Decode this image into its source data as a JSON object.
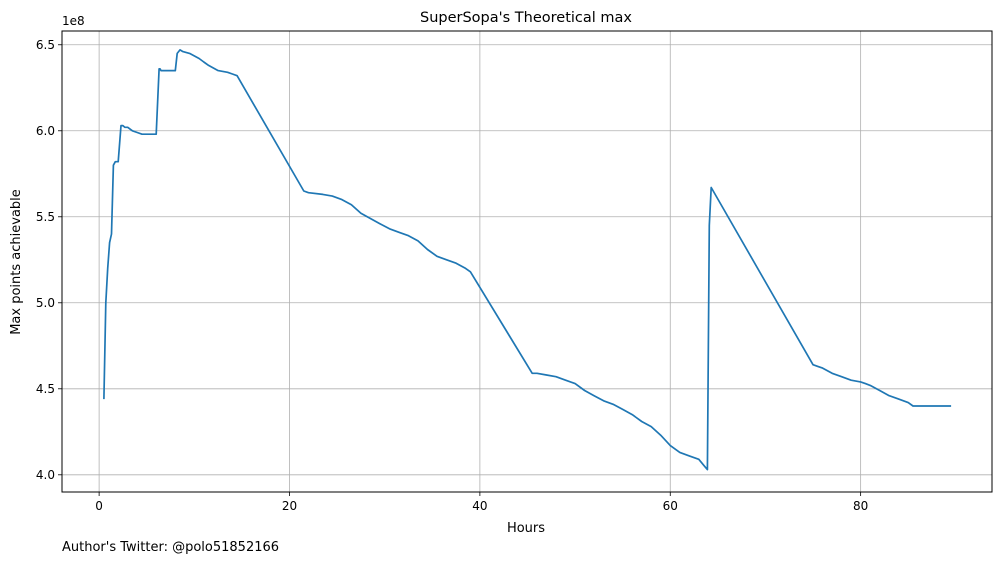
{
  "chart_data": {
    "type": "line",
    "title": "SuperSopa's Theoretical max",
    "xlabel": "Hours",
    "ylabel": "Max points achievable",
    "y_multiplier_label": "1e8",
    "y_multiplier": 100000000,
    "xlim": [
      -3.9,
      93.8
    ],
    "ylim": [
      3.9,
      6.58
    ],
    "x_ticks": [
      0,
      20,
      40,
      60,
      80
    ],
    "x_tick_labels": [
      "0",
      "20",
      "40",
      "60",
      "80"
    ],
    "y_ticks": [
      4.0,
      4.5,
      5.0,
      5.5,
      6.0,
      6.5
    ],
    "y_tick_labels": [
      "4.0",
      "4.5",
      "5.0",
      "5.5",
      "6.0",
      "6.5"
    ],
    "grid": true,
    "series": [
      {
        "color": "#1f77b4",
        "x": [
          0.5,
          0.7,
          0.9,
          1.1,
          1.3,
          1.5,
          1.7,
          2.0,
          2.3,
          2.5,
          2.7,
          3.0,
          3.5,
          4.0,
          4.5,
          5.0,
          5.5,
          6.0,
          6.3,
          6.4,
          6.5,
          7.0,
          8.0,
          8.2,
          8.5,
          8.8,
          9.5,
          10.5,
          11.0,
          11.5,
          12.5,
          13.5,
          14.0,
          14.5,
          21.5,
          22.0,
          23.5,
          24.5,
          25.5,
          26.5,
          27.5,
          28.5,
          29.5,
          30.5,
          31.5,
          32.5,
          33.5,
          34.5,
          35.5,
          36.5,
          37.5,
          38.5,
          39.0,
          45.5,
          46.0,
          47.0,
          48.0,
          49.0,
          50.0,
          51.0,
          52.0,
          53.0,
          54.0,
          55.0,
          56.0,
          57.0,
          58.0,
          59.0,
          60.0,
          61.0,
          62.0,
          63.0,
          63.6,
          63.9,
          64.1,
          64.3,
          75.0,
          75.5,
          76.0,
          77.0,
          78.0,
          79.0,
          80.0,
          80.5,
          81.0,
          82.0,
          83.0,
          84.0,
          85.0,
          85.5,
          86.0,
          87.0,
          88.0,
          89.0,
          89.5
        ],
        "y": [
          4.44,
          5.0,
          5.2,
          5.35,
          5.4,
          5.8,
          5.82,
          5.82,
          6.03,
          6.03,
          6.02,
          6.02,
          6.0,
          5.99,
          5.98,
          5.98,
          5.98,
          5.98,
          6.36,
          6.36,
          6.35,
          6.35,
          6.35,
          6.45,
          6.47,
          6.46,
          6.45,
          6.42,
          6.4,
          6.38,
          6.35,
          6.34,
          6.33,
          6.32,
          5.65,
          5.64,
          5.63,
          5.62,
          5.6,
          5.57,
          5.52,
          5.49,
          5.46,
          5.43,
          5.41,
          5.39,
          5.36,
          5.31,
          5.27,
          5.25,
          5.23,
          5.2,
          5.18,
          4.59,
          4.59,
          4.58,
          4.57,
          4.55,
          4.53,
          4.49,
          4.46,
          4.43,
          4.41,
          4.38,
          4.35,
          4.31,
          4.28,
          4.23,
          4.17,
          4.13,
          4.11,
          4.09,
          4.05,
          4.03,
          5.45,
          5.67,
          4.64,
          4.63,
          4.62,
          4.59,
          4.57,
          4.55,
          4.54,
          4.53,
          4.52,
          4.49,
          4.46,
          4.44,
          4.42,
          4.4,
          4.4,
          4.4,
          4.4,
          4.4,
          4.4
        ]
      }
    ]
  },
  "footer": {
    "text": "Author's Twitter: @polo51852166"
  }
}
